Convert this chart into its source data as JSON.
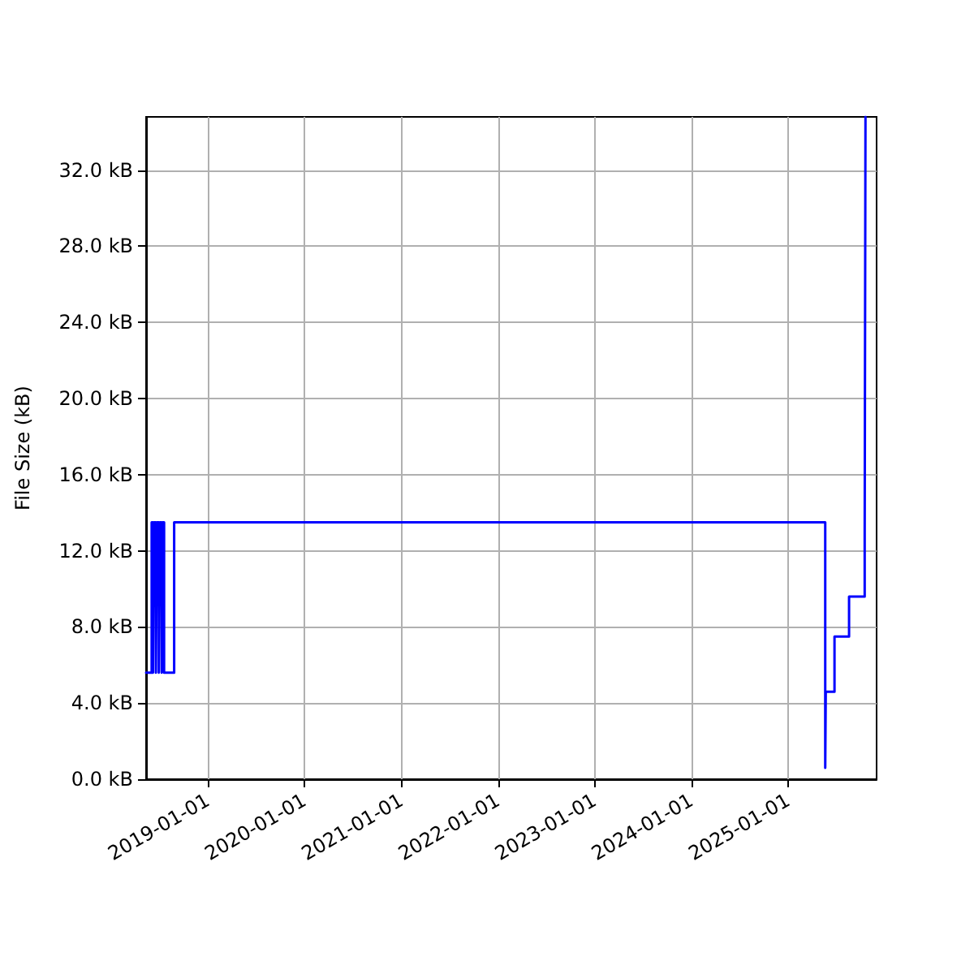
{
  "chart_data": {
    "type": "step",
    "ylabel": "File Size (kB)",
    "x": [
      "2018-05-13",
      "2018-06-03",
      "2018-06-08",
      "2018-06-12",
      "2018-06-19",
      "2018-06-23",
      "2018-06-30",
      "2018-07-04",
      "2018-07-11",
      "2018-07-15",
      "2018-07-20",
      "2018-08-27",
      "2025-05-21",
      "2025-05-23",
      "2025-06-25",
      "2025-08-19",
      "2025-10-17",
      "2025-10-20"
    ],
    "series": [
      {
        "color": "#0000ff",
        "values": [
          5.6,
          13.5,
          5.6,
          13.5,
          5.6,
          13.5,
          5.6,
          13.5,
          5.6,
          13.5,
          5.6,
          13.5,
          0.6,
          4.6,
          7.5,
          9.6,
          13.0,
          34.8
        ]
      }
    ],
    "xlim": [
      "2018-05-13",
      "2025-12-01"
    ],
    "xticks": [
      "2019-01-01",
      "2020-01-01",
      "2021-01-01",
      "2022-01-01",
      "2023-01-01",
      "2024-01-01",
      "2025-01-01"
    ],
    "ylim": [
      0,
      34.8
    ],
    "yticks": [
      {
        "value": 0,
        "label": "0.0 kB"
      },
      {
        "value": 4,
        "label": "4.0 kB"
      },
      {
        "value": 8,
        "label": "8.0 kB"
      },
      {
        "value": 12,
        "label": "12.0 kB"
      },
      {
        "value": 16,
        "label": "16.0 kB"
      },
      {
        "value": 20,
        "label": "20.0 kB"
      },
      {
        "value": 24,
        "label": "24.0 kB"
      },
      {
        "value": 28,
        "label": "28.0 kB"
      },
      {
        "value": 32,
        "label": "32.0 kB"
      }
    ],
    "grid": true
  }
}
